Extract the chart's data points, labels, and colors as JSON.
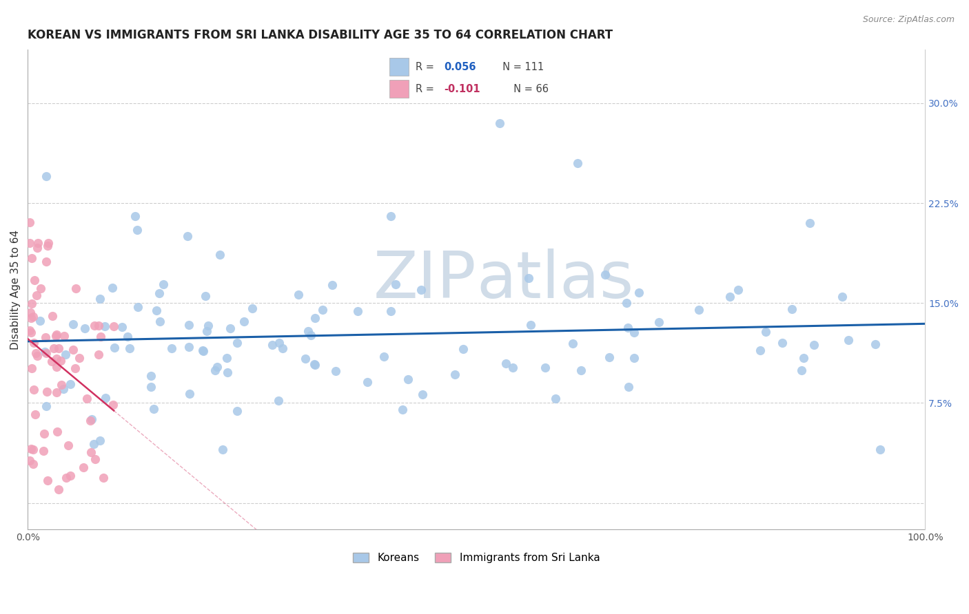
{
  "title": "KOREAN VS IMMIGRANTS FROM SRI LANKA DISABILITY AGE 35 TO 64 CORRELATION CHART",
  "source": "Source: ZipAtlas.com",
  "ylabel": "Disability Age 35 to 64",
  "xlim": [
    0.0,
    1.0
  ],
  "ylim": [
    -0.02,
    0.34
  ],
  "yticks": [
    0.0,
    0.075,
    0.15,
    0.225,
    0.3
  ],
  "ytick_labels_right": [
    "",
    "7.5%",
    "15.0%",
    "22.5%",
    "30.0%"
  ],
  "korean_R": 0.056,
  "korean_N": 111,
  "srilanka_R": -0.101,
  "srilanka_N": 66,
  "korean_fill": "#a8c8e8",
  "korean_line_color": "#1a5fa8",
  "srilanka_fill": "#f0a0b8",
  "srilanka_line_color": "#d03060",
  "background_color": "#ffffff",
  "grid_color": "#c8c8c8",
  "watermark_color": "#d0dce8",
  "legend_label_korean": "Koreans",
  "legend_label_srilanka": "Immigrants from Sri Lanka",
  "title_fontsize": 12,
  "axis_label_fontsize": 11,
  "tick_fontsize": 10,
  "right_tick_color": "#4472c4",
  "legend_R_korean_color": "#2060c0",
  "legend_R_srilanka_color": "#c03060"
}
